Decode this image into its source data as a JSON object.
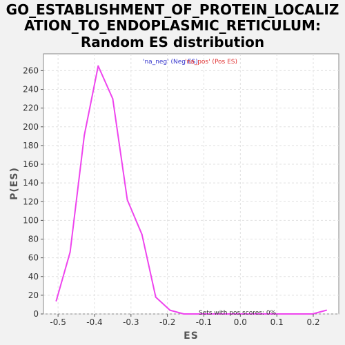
{
  "chart_data": {
    "type": "line",
    "title_lines": [
      "GO_ESTABLISHMENT_OF_PROTEIN_LOCALIZ",
      "ATION_TO_ENDOPLASMIC_RETICULUM:",
      "Random ES distribution"
    ],
    "xlabel": "ES",
    "ylabel": "P(ES)",
    "xlim": [
      -0.54,
      0.27
    ],
    "ylim": [
      0,
      278
    ],
    "x_ticks": [
      -0.5,
      -0.4,
      -0.3,
      -0.2,
      -0.1,
      0.0,
      0.1,
      0.2
    ],
    "x_tick_labels": [
      "-0.5",
      "-0.4",
      "-0.3",
      "-0.2",
      "-0.1",
      "0.0",
      "0.1",
      "0.2"
    ],
    "y_ticks": [
      0,
      20,
      40,
      60,
      80,
      100,
      120,
      140,
      160,
      180,
      200,
      220,
      240,
      260
    ],
    "y_tick_labels": [
      "0",
      "20",
      "40",
      "60",
      "80",
      "100",
      "120",
      "140",
      "160",
      "180",
      "200",
      "220",
      "240",
      "260"
    ],
    "grid": true,
    "legend": [
      {
        "label": "'na_neg' (Neg ES)",
        "color": "#3333cc"
      },
      {
        "label": "'na_pos' (Pos ES)",
        "color": "#e03030"
      }
    ],
    "legend_position": "top-center",
    "annotation": "Sets with pos scores: 0%",
    "series": [
      {
        "color": "#ee44ee",
        "points": [
          [
            -0.505,
            14
          ],
          [
            -0.467,
            66
          ],
          [
            -0.428,
            191
          ],
          [
            -0.39,
            265
          ],
          [
            -0.35,
            230
          ],
          [
            -0.31,
            122
          ],
          [
            -0.27,
            85
          ],
          [
            -0.232,
            18
          ],
          [
            -0.193,
            4
          ],
          [
            -0.155,
            0
          ],
          [
            -0.115,
            0
          ],
          [
            -0.075,
            0
          ],
          [
            -0.036,
            0
          ],
          [
            0.003,
            0
          ],
          [
            0.042,
            0
          ],
          [
            0.082,
            0
          ],
          [
            0.121,
            0
          ],
          [
            0.16,
            0
          ],
          [
            0.198,
            0
          ],
          [
            0.236,
            4
          ]
        ]
      }
    ]
  }
}
